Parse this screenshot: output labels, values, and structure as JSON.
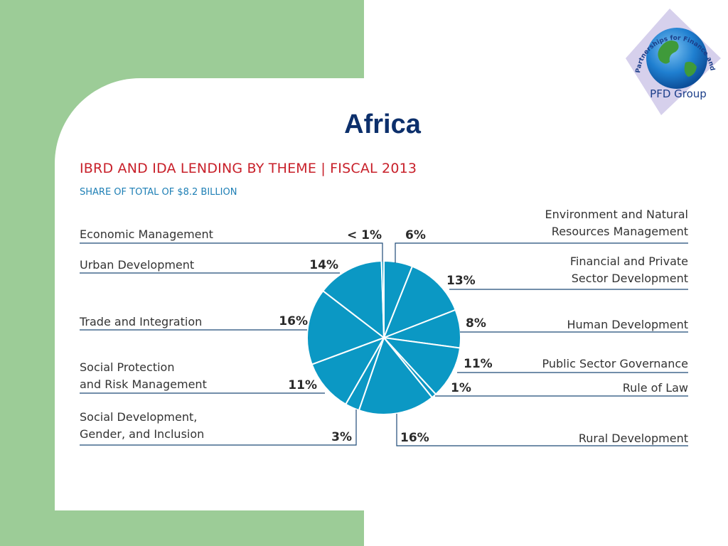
{
  "slide": {
    "title": "Africa"
  },
  "logo": {
    "text_top": "Partnerships for Finance and Development Group",
    "text_bottom": "PFD Group",
    "globe_color": "#1f7fd0",
    "diamond_color": "#d6d0ec"
  },
  "colors": {
    "background_green": "#9ccc97",
    "title_navy": "#0c2f6b",
    "chart_title_red": "#c8202a",
    "subtitle_blue": "#1e7fb5",
    "slice_fill": "#0b98c4",
    "slice_stroke": "#ffffff",
    "leader_line": "#1e4a78"
  },
  "chart_data": {
    "type": "pie",
    "title": "IBRD AND IDA LENDING BY THEME | FISCAL 2013",
    "subtitle": "SHARE OF TOTAL OF $8.2 BILLION",
    "total": "$8.2 billion",
    "slices": [
      {
        "label": "Environment and Natural Resources Management",
        "lines": [
          "Environment and Natural",
          "Resources Management"
        ],
        "value": 6,
        "display": "6%",
        "side": "right"
      },
      {
        "label": "Financial and Private Sector Development",
        "lines": [
          "Financial and Private",
          "Sector Development"
        ],
        "value": 13,
        "display": "13%",
        "side": "right"
      },
      {
        "label": "Human Development",
        "lines": [
          "Human Development"
        ],
        "value": 8,
        "display": "8%",
        "side": "right"
      },
      {
        "label": "Public Sector Governance",
        "lines": [
          "Public Sector Governance"
        ],
        "value": 11,
        "display": "11%",
        "side": "right"
      },
      {
        "label": "Rule of Law",
        "lines": [
          "Rule of Law"
        ],
        "value": 1,
        "display": "1%",
        "side": "right"
      },
      {
        "label": "Rural Development",
        "lines": [
          "Rural Development"
        ],
        "value": 16,
        "display": "16%",
        "side": "right"
      },
      {
        "label": "Social Development, Gender, and Inclusion",
        "lines": [
          "Social Development,",
          "Gender, and Inclusion"
        ],
        "value": 3,
        "display": "3%",
        "side": "left"
      },
      {
        "label": "Social Protection and Risk Management",
        "lines": [
          "Social Protection",
          "and Risk Management"
        ],
        "value": 11,
        "display": "11%",
        "side": "left"
      },
      {
        "label": "Trade and Integration",
        "lines": [
          "Trade and Integration"
        ],
        "value": 16,
        "display": "16%",
        "side": "left"
      },
      {
        "label": "Urban Development",
        "lines": [
          "Urban Development"
        ],
        "value": 14,
        "display": "14%",
        "side": "left"
      },
      {
        "label": "Economic Management",
        "lines": [
          "Economic Management"
        ],
        "value": 0.5,
        "display": "< 1%",
        "side": "left"
      }
    ]
  }
}
